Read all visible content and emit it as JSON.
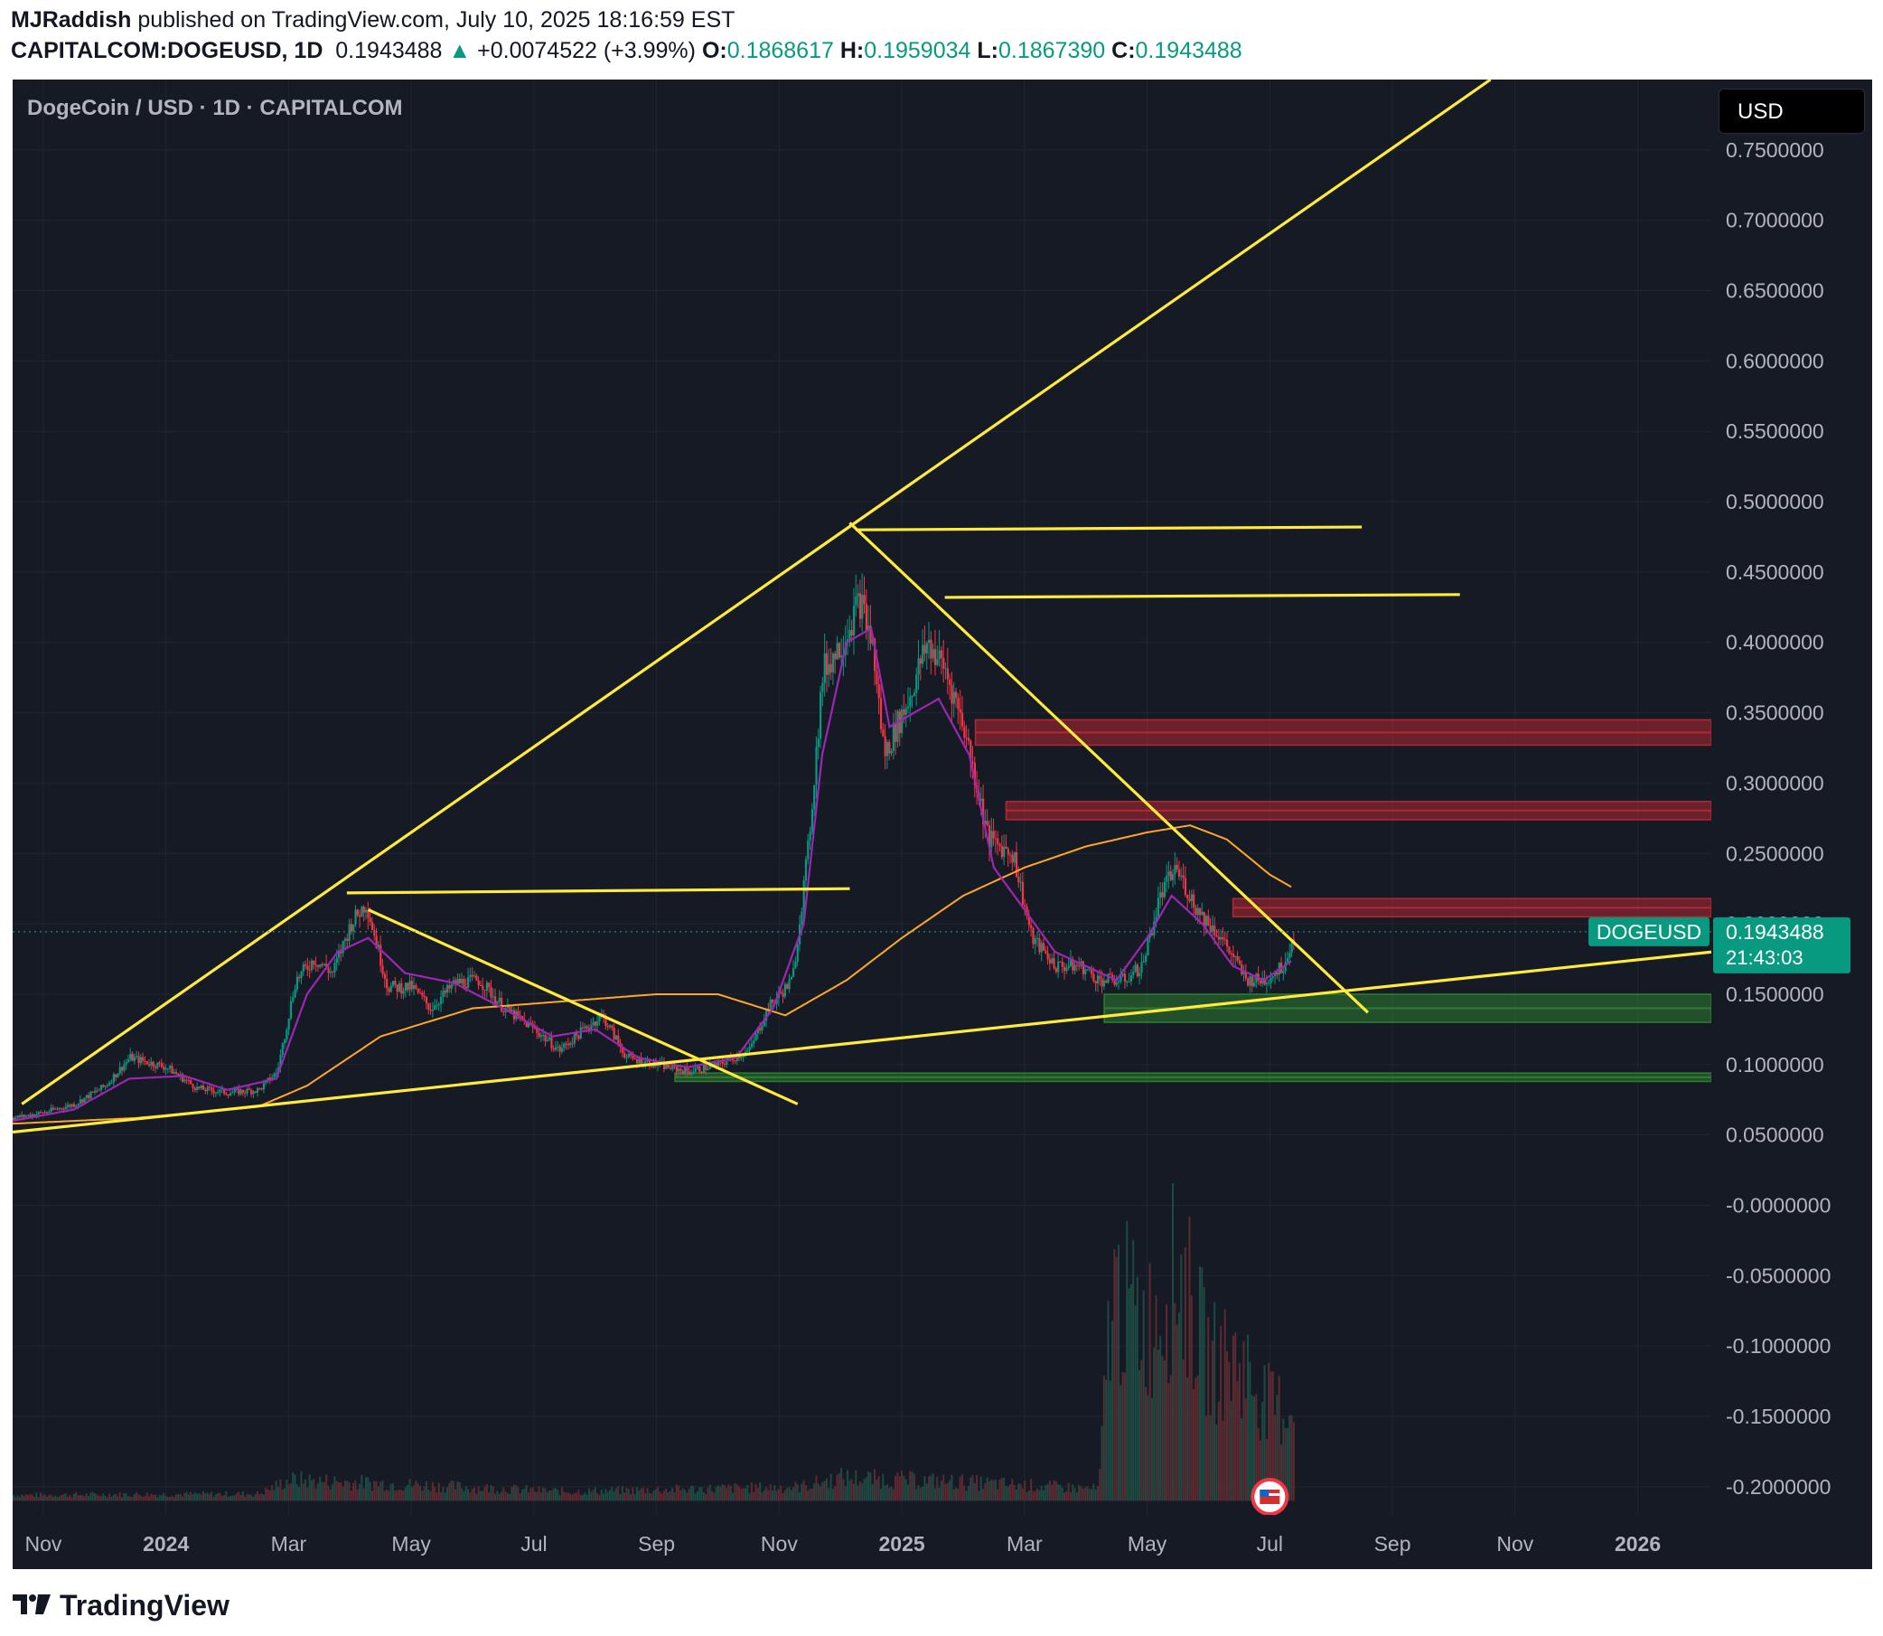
{
  "header": {
    "author": "MJRaddish",
    "published": "published on TradingView.com, July 10, 2025 18:16:59 EST",
    "symbol": "CAPITALCOM:DOGEUSD, 1D",
    "last": "0.1943488",
    "change": "+0.0074522 (+3.99%)",
    "o_label": "O:",
    "o": "0.1868617",
    "h_label": "H:",
    "h": "0.1959034",
    "l_label": "L:",
    "l": "0.1867390",
    "c_label": "C:",
    "c": "0.1943488"
  },
  "chart_title": "DogeCoin / USD · 1D · CAPITALCOM",
  "currency_button": "USD",
  "price_tag": {
    "symbol": "DOGEUSD",
    "price": "0.1943488",
    "countdown": "21:43:03"
  },
  "footer": {
    "brand": "TradingView"
  },
  "colors": {
    "background": "#161a25",
    "up": "#089981",
    "down": "#f23645",
    "trendline": "#ffeb3b",
    "ma_fast": "#9c27b0",
    "ma_slow": "#ffa726",
    "resistance_zone": "#b22833",
    "support_zone": "#2e7d32"
  },
  "chart_data": {
    "type": "candlestick",
    "y_axis_ticks": [
      "0.7500000",
      "0.7000000",
      "0.6500000",
      "0.6000000",
      "0.5500000",
      "0.5000000",
      "0.4500000",
      "0.4000000",
      "0.3500000",
      "0.3000000",
      "0.2500000",
      "0.2000000",
      "0.1500000",
      "0.1000000",
      "0.0500000",
      "-0.0000000",
      "-0.0500000",
      "-0.1000000",
      "-0.1500000",
      "-0.2000000"
    ],
    "x_axis_ticks": [
      {
        "label": "Nov",
        "t": 0.5,
        "bold": false
      },
      {
        "label": "2024",
        "t": 2.5,
        "bold": true
      },
      {
        "label": "Mar",
        "t": 4.5,
        "bold": false
      },
      {
        "label": "May",
        "t": 6.5,
        "bold": false
      },
      {
        "label": "Jul",
        "t": 8.5,
        "bold": false
      },
      {
        "label": "Sep",
        "t": 10.5,
        "bold": false
      },
      {
        "label": "Nov",
        "t": 12.5,
        "bold": false
      },
      {
        "label": "2025",
        "t": 14.5,
        "bold": true
      },
      {
        "label": "Mar",
        "t": 16.5,
        "bold": false
      },
      {
        "label": "May",
        "t": 18.5,
        "bold": false
      },
      {
        "label": "Jul",
        "t": 20.5,
        "bold": false
      },
      {
        "label": "Sep",
        "t": 22.5,
        "bold": false
      },
      {
        "label": "Nov",
        "t": 24.5,
        "bold": false
      },
      {
        "label": "2026",
        "t": 26.5,
        "bold": true
      }
    ],
    "ylim": [
      -0.22,
      0.8
    ],
    "xlim": [
      0,
      27.7
    ],
    "price_path": [
      [
        0,
        0.062
      ],
      [
        0.5,
        0.066
      ],
      [
        1,
        0.072
      ],
      [
        1.5,
        0.085
      ],
      [
        1.9,
        0.105
      ],
      [
        2.5,
        0.098
      ],
      [
        3,
        0.083
      ],
      [
        3.5,
        0.08
      ],
      [
        4,
        0.082
      ],
      [
        4.3,
        0.095
      ],
      [
        4.6,
        0.16
      ],
      [
        4.9,
        0.175
      ],
      [
        5.2,
        0.165
      ],
      [
        5.5,
        0.2
      ],
      [
        5.75,
        0.215
      ],
      [
        6.1,
        0.155
      ],
      [
        6.5,
        0.155
      ],
      [
        6.8,
        0.14
      ],
      [
        7.2,
        0.158
      ],
      [
        7.6,
        0.16
      ],
      [
        8,
        0.14
      ],
      [
        8.5,
        0.125
      ],
      [
        8.9,
        0.11
      ],
      [
        9.3,
        0.125
      ],
      [
        9.6,
        0.135
      ],
      [
        10,
        0.105
      ],
      [
        10.5,
        0.1
      ],
      [
        11,
        0.095
      ],
      [
        11.5,
        0.1
      ],
      [
        12,
        0.11
      ],
      [
        12.3,
        0.14
      ],
      [
        12.7,
        0.16
      ],
      [
        12.95,
        0.25
      ],
      [
        13.2,
        0.38
      ],
      [
        13.5,
        0.4
      ],
      [
        13.8,
        0.43
      ],
      [
        14,
        0.4
      ],
      [
        14.2,
        0.32
      ],
      [
        14.6,
        0.36
      ],
      [
        14.9,
        0.4
      ],
      [
        15.2,
        0.38
      ],
      [
        15.5,
        0.34
      ],
      [
        15.9,
        0.26
      ],
      [
        16.3,
        0.25
      ],
      [
        16.6,
        0.19
      ],
      [
        17,
        0.17
      ],
      [
        17.4,
        0.17
      ],
      [
        17.7,
        0.16
      ],
      [
        18.1,
        0.16
      ],
      [
        18.4,
        0.17
      ],
      [
        18.7,
        0.22
      ],
      [
        18.95,
        0.24
      ],
      [
        19.3,
        0.21
      ],
      [
        19.7,
        0.19
      ],
      [
        20.1,
        0.16
      ],
      [
        20.4,
        0.16
      ],
      [
        20.7,
        0.17
      ],
      [
        20.9,
        0.1943
      ]
    ],
    "ma_fast_path": [
      [
        0,
        0.06
      ],
      [
        1,
        0.068
      ],
      [
        1.9,
        0.09
      ],
      [
        2.8,
        0.092
      ],
      [
        3.5,
        0.082
      ],
      [
        4.3,
        0.09
      ],
      [
        4.8,
        0.15
      ],
      [
        5.3,
        0.18
      ],
      [
        5.8,
        0.19
      ],
      [
        6.4,
        0.165
      ],
      [
        7.2,
        0.158
      ],
      [
        8,
        0.14
      ],
      [
        8.8,
        0.12
      ],
      [
        9.5,
        0.125
      ],
      [
        10.2,
        0.105
      ],
      [
        11,
        0.098
      ],
      [
        11.8,
        0.105
      ],
      [
        12.4,
        0.14
      ],
      [
        12.9,
        0.2
      ],
      [
        13.2,
        0.32
      ],
      [
        13.6,
        0.4
      ],
      [
        14,
        0.41
      ],
      [
        14.3,
        0.34
      ],
      [
        14.7,
        0.35
      ],
      [
        15.1,
        0.36
      ],
      [
        15.6,
        0.32
      ],
      [
        16,
        0.24
      ],
      [
        16.5,
        0.21
      ],
      [
        17,
        0.18
      ],
      [
        17.5,
        0.17
      ],
      [
        18,
        0.16
      ],
      [
        18.5,
        0.19
      ],
      [
        18.9,
        0.22
      ],
      [
        19.4,
        0.2
      ],
      [
        19.9,
        0.17
      ],
      [
        20.4,
        0.16
      ],
      [
        20.9,
        0.175
      ]
    ],
    "ma_slow_path": [
      [
        0,
        0.058
      ],
      [
        2,
        0.062
      ],
      [
        4,
        0.07
      ],
      [
        4.8,
        0.085
      ],
      [
        6,
        0.12
      ],
      [
        7.5,
        0.14
      ],
      [
        9,
        0.145
      ],
      [
        10.5,
        0.15
      ],
      [
        11.5,
        0.15
      ],
      [
        12.6,
        0.135
      ],
      [
        13.6,
        0.16
      ],
      [
        14.5,
        0.19
      ],
      [
        15.5,
        0.22
      ],
      [
        16.5,
        0.24
      ],
      [
        17.5,
        0.255
      ],
      [
        18.5,
        0.265
      ],
      [
        19.2,
        0.27
      ],
      [
        19.8,
        0.26
      ],
      [
        20.5,
        0.235
      ],
      [
        20.9,
        0.225
      ]
    ],
    "volume_path": [
      [
        0,
        0.005
      ],
      [
        4,
        0.006
      ],
      [
        4.5,
        0.018
      ],
      [
        6,
        0.015
      ],
      [
        9,
        0.008
      ],
      [
        12.8,
        0.012
      ],
      [
        13.5,
        0.02
      ],
      [
        15.5,
        0.016
      ],
      [
        17,
        0.012
      ],
      [
        17.7,
        0.01
      ],
      [
        17.9,
        0.18
      ],
      [
        18.5,
        0.15
      ],
      [
        19,
        0.2
      ],
      [
        19.5,
        0.12
      ],
      [
        20,
        0.12
      ],
      [
        20.5,
        0.08
      ],
      [
        20.9,
        0.08
      ]
    ],
    "trendlines": [
      {
        "from": [
          0.15,
          0.072
        ],
        "to": [
          24.1,
          0.8
        ]
      },
      {
        "from": [
          0,
          0.052
        ],
        "to": [
          27.7,
          0.18
        ]
      },
      {
        "from": [
          5.45,
          0.222
        ],
        "to": [
          13.65,
          0.225
        ]
      },
      {
        "from": [
          5.8,
          0.21
        ],
        "to": [
          12.8,
          0.072
        ]
      },
      {
        "from": [
          13.75,
          0.48
        ],
        "to": [
          22.0,
          0.482
        ]
      },
      {
        "from": [
          13.65,
          0.485
        ],
        "to": [
          22.1,
          0.137
        ]
      },
      {
        "from": [
          15.2,
          0.432
        ],
        "to": [
          23.6,
          0.434
        ]
      }
    ],
    "zones": [
      {
        "kind": "resistance",
        "from_t": 15.7,
        "bottom": 0.327,
        "top": 0.345
      },
      {
        "kind": "resistance",
        "from_t": 16.2,
        "bottom": 0.274,
        "top": 0.287
      },
      {
        "kind": "resistance",
        "from_t": 19.9,
        "bottom": 0.205,
        "top": 0.218
      },
      {
        "kind": "support",
        "from_t": 17.8,
        "bottom": 0.13,
        "top": 0.15
      },
      {
        "kind": "support",
        "from_t": 10.8,
        "bottom": 0.088,
        "top": 0.094
      }
    ],
    "last_price": 0.1943488
  }
}
